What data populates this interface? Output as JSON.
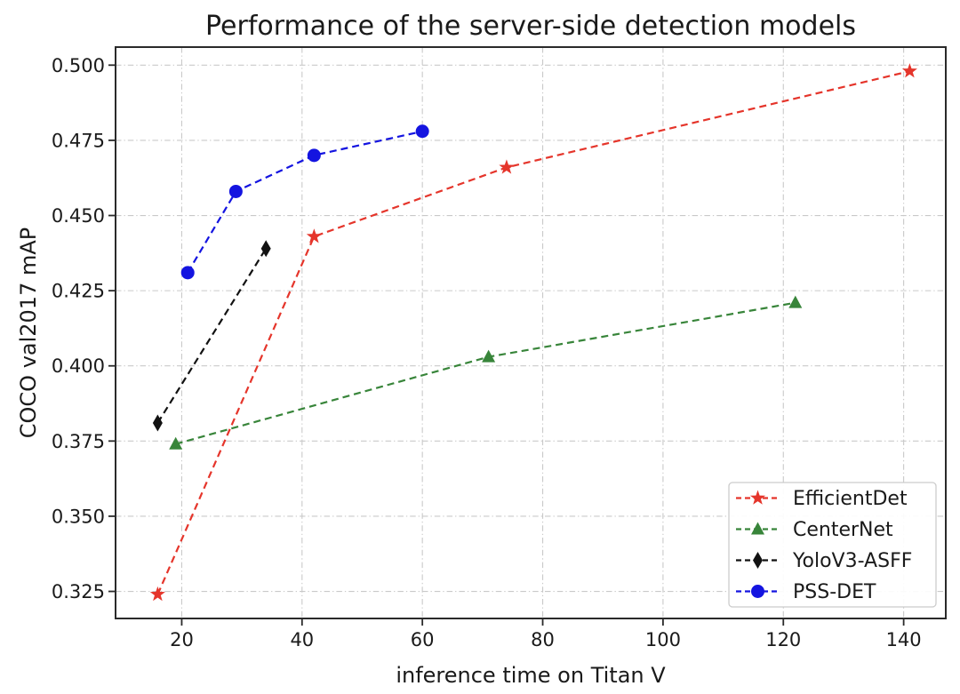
{
  "figure": {
    "background_color": "#ffffff",
    "axis_color": "#2a2a2a",
    "text_color": "#1a1a1a"
  },
  "chart_data": {
    "type": "line",
    "title": "Performance of the server-side detection models",
    "xlabel": "inference time on Titan V",
    "ylabel": "COCO val2017 mAP",
    "xlim": [
      9,
      147
    ],
    "ylim": [
      0.316,
      0.506
    ],
    "x_ticks": [
      20,
      40,
      60,
      80,
      100,
      120,
      140
    ],
    "y_ticks": [
      {
        "value": 0.5,
        "label": "0.500"
      },
      {
        "value": 0.475,
        "label": "0.475"
      },
      {
        "value": 0.45,
        "label": "0.450"
      },
      {
        "value": 0.425,
        "label": "0.425"
      },
      {
        "value": 0.4,
        "label": "0.400"
      },
      {
        "value": 0.375,
        "label": "0.375"
      },
      {
        "value": 0.35,
        "label": "0.350"
      },
      {
        "value": 0.325,
        "label": "0.325"
      }
    ],
    "grid": true,
    "grid_color": "#c9c9c9",
    "legend_position": "lower right",
    "series": [
      {
        "name": "EfficientDet",
        "color": "#e5352b",
        "marker": "star",
        "linestyle": "dashed",
        "points": [
          [
            16,
            0.324
          ],
          [
            42,
            0.443
          ],
          [
            74,
            0.466
          ],
          [
            141,
            0.498
          ]
        ]
      },
      {
        "name": "CenterNet",
        "color": "#38853a",
        "marker": "triangle-up",
        "linestyle": "dashed",
        "points": [
          [
            19,
            0.374
          ],
          [
            71,
            0.403
          ],
          [
            122,
            0.421
          ]
        ]
      },
      {
        "name": "YoloV3-ASFF",
        "color": "#121212",
        "marker": "thin-diamond",
        "linestyle": "dashed",
        "points": [
          [
            16,
            0.381
          ],
          [
            34,
            0.439
          ]
        ]
      },
      {
        "name": "PSS-DET",
        "color": "#1414e0",
        "marker": "circle",
        "linestyle": "dashed",
        "points": [
          [
            21,
            0.431
          ],
          [
            29,
            0.458
          ],
          [
            42,
            0.47
          ],
          [
            60,
            0.478
          ]
        ]
      }
    ]
  }
}
